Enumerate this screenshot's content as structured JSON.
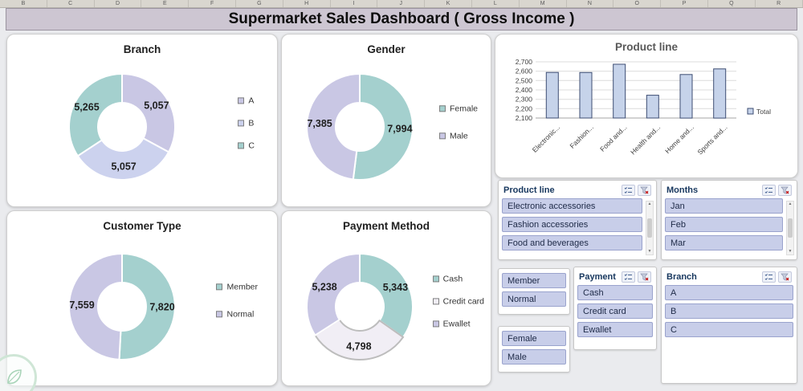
{
  "header": {
    "title": "Supermarket Sales Dashboard ( Gross Income )"
  },
  "spreadsheet": {
    "column_letters": [
      "B",
      "C",
      "D",
      "E",
      "F",
      "G",
      "H",
      "I",
      "J",
      "K",
      "L",
      "M",
      "N",
      "O",
      "P",
      "Q",
      "R"
    ]
  },
  "colors": {
    "lavender": "#c9c7e4",
    "lavender_light": "#ccd2ee",
    "teal": "#a4d0ce",
    "white_slice": "#f1eef5",
    "bar_fill": "#c6d3ea",
    "bar_border": "#3d4d73",
    "title_bar_bg": "#cdc6d2",
    "slicer_item_bg": "#c8cee9",
    "slicer_item_border": "#9aa3cd"
  },
  "chart_data": [
    {
      "type": "donut",
      "title": "Branch",
      "slices": [
        {
          "label": "A",
          "value": 5057,
          "display": "5,057",
          "color": "#c9c7e4"
        },
        {
          "label": "B",
          "value": 5057,
          "display": "5,057",
          "color": "#ccd2ee"
        },
        {
          "label": "C",
          "value": 5265,
          "display": "5,265",
          "color": "#a4d0ce"
        }
      ]
    },
    {
      "type": "donut",
      "title": "Gender",
      "slices": [
        {
          "label": "Female",
          "value": 7994,
          "display": "7,994",
          "color": "#a4d0ce"
        },
        {
          "label": "Male",
          "value": 7385,
          "display": "7,385",
          "color": "#c9c7e4"
        }
      ]
    },
    {
      "type": "donut",
      "title": "Customer Type",
      "slices": [
        {
          "label": "Member",
          "value": 7820,
          "display": "7,820",
          "color": "#a4d0ce"
        },
        {
          "label": "Normal",
          "value": 7559,
          "display": "7,559",
          "color": "#c9c7e4"
        }
      ]
    },
    {
      "type": "donut",
      "title": "Payment Method",
      "slices": [
        {
          "label": "Cash",
          "value": 5343,
          "display": "5,343",
          "color": "#a4d0ce"
        },
        {
          "label": "Credit card",
          "value": 4798,
          "display": "4,798",
          "color": "#f1eef5",
          "stroke": "#bdbdbd"
        },
        {
          "label": "Ewallet",
          "value": 5238,
          "display": "5,238",
          "color": "#c9c7e4"
        }
      ]
    },
    {
      "type": "bar",
      "title": "Product line",
      "categories": [
        "Electronic...",
        "Fashion...",
        "Food and...",
        "Health and...",
        "Home and...",
        "Sports and..."
      ],
      "values": [
        2587,
        2586,
        2674,
        2343,
        2565,
        2625
      ],
      "ylim": [
        2100,
        2700
      ],
      "ytick_step": 100,
      "legend": [
        "Total"
      ],
      "bar_color": "#c6d3ea",
      "bar_border": "#3d4d73",
      "grid": true,
      "legend_position": "right"
    }
  ],
  "slicers": {
    "product_line": {
      "title": "Product line",
      "items": [
        "Electronic accessories",
        "Fashion accessories",
        "Food and beverages"
      ]
    },
    "months": {
      "title": "Months",
      "items": [
        "Jan",
        "Feb",
        "Mar"
      ]
    },
    "customer_type": {
      "items": [
        "Member",
        "Normal"
      ]
    },
    "gender": {
      "items": [
        "Female",
        "Male"
      ]
    },
    "payment": {
      "title": "Payment",
      "items": [
        "Cash",
        "Credit card",
        "Ewallet"
      ]
    },
    "branch": {
      "title": "Branch",
      "items": [
        "A",
        "B",
        "C"
      ]
    }
  }
}
